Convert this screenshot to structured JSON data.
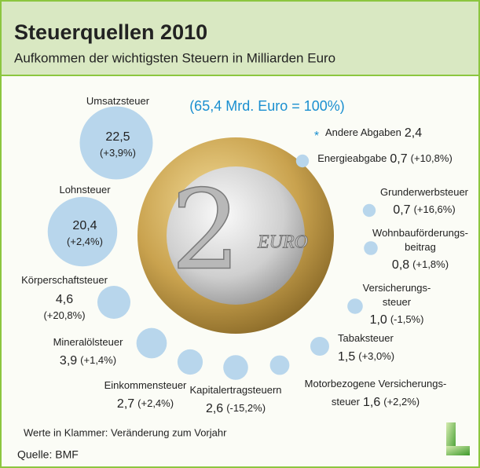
{
  "chart_data": {
    "type": "bubble",
    "title": "Steuerquellen 2010",
    "subtitle": "Aufkommen der wichtigsten Steuern in Milliarden Euro",
    "total_note": "(65,4 Mrd. Euro = 100%)",
    "color": "#b8d6ec",
    "categories": [
      [
        "Umsatzsteuer"
      ],
      [
        "Lohnsteuer"
      ],
      [
        "Körperschaftsteuer"
      ],
      [
        "Mineralölsteuer"
      ],
      [
        "Einkommensteuer"
      ],
      [
        "Kapitalertragsteuern"
      ],
      [
        "Motorbezogene Versicherungs-",
        "steuer"
      ],
      [
        "Tabaksteuer"
      ],
      [
        "Versicherungs-",
        "steuer"
      ],
      [
        "Wohnbauförderungs-",
        "beitrag"
      ],
      [
        "Grunderwerbsteuer"
      ],
      [
        "Energieabgabe"
      ]
    ],
    "values": [
      22.5,
      20.4,
      4.6,
      3.9,
      2.7,
      2.6,
      1.6,
      1.5,
      1.0,
      0.8,
      0.7,
      0.7
    ],
    "value_labels": [
      "22,5",
      "20,4",
      "4,6",
      "3,9",
      "2,7",
      "2,6",
      "1,6",
      "1,5",
      "1,0",
      "0,8",
      "0,7",
      "0,7"
    ],
    "changes": [
      "(+3,9%)",
      "(+2,4%)",
      "(+20,8%)",
      "(+1,4%)",
      "(+2,4%)",
      "(-15,2%)",
      "(+2,2%)",
      "(+3,0%)",
      "(-1,5%)",
      "(+1,8%)",
      "(+16,6%)",
      "(+10,8%)"
    ],
    "other": {
      "marker": "*",
      "label": "Andere Abgaben",
      "value_label": "2,4"
    },
    "coin": {
      "numeral": "2",
      "label": "EURO"
    },
    "footnote": "Werte in Klammer: Veränderung zum Vorjahr",
    "source": "Quelle: BMF"
  }
}
